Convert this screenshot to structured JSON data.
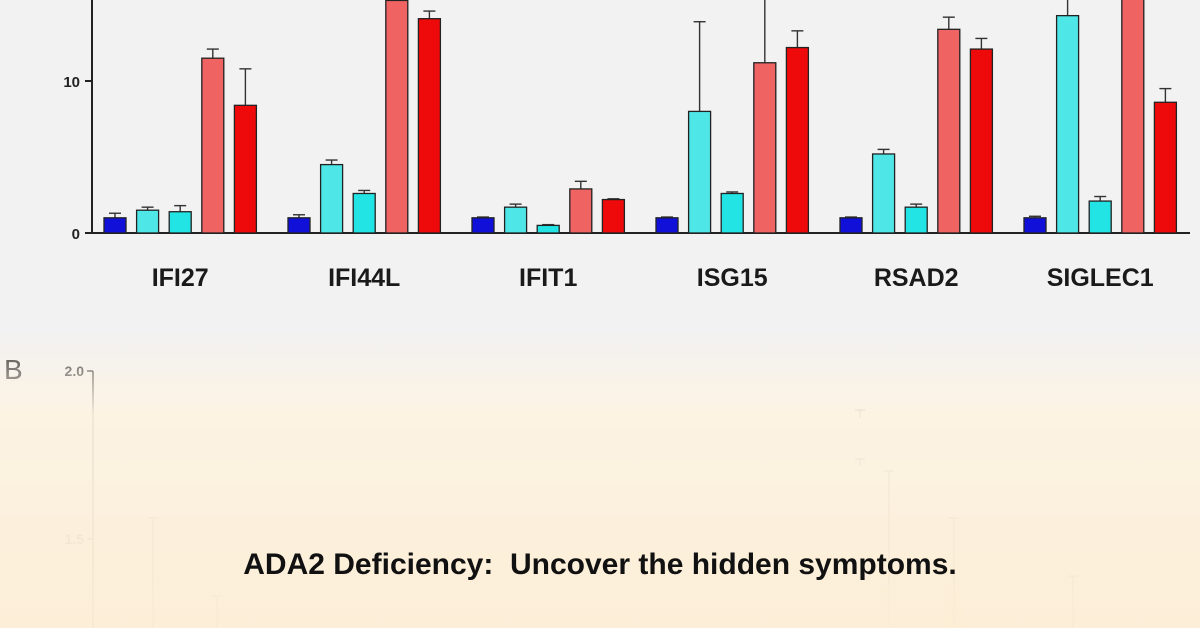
{
  "chart_data": [
    {
      "type": "bar",
      "ylim": [
        0,
        15
      ],
      "yticks": [
        0,
        10
      ],
      "grid": false,
      "categories": [
        "IFI27",
        "IFI44L",
        "IFIT1",
        "ISG15",
        "RSAD2",
        "SIGLEC1"
      ],
      "series": [
        {
          "color": "#1010d8",
          "values": [
            1.0,
            1.0,
            1.0,
            1.0,
            1.0,
            1.0
          ],
          "errors": [
            0.3,
            0.2,
            0.05,
            0.05,
            0.05,
            0.1
          ]
        },
        {
          "color": "#4ee6e6",
          "values": [
            1.5,
            4.5,
            1.7,
            8.0,
            5.2,
            14.3
          ],
          "errors": [
            0.2,
            0.3,
            0.2,
            5.9,
            0.3,
            1.8
          ]
        },
        {
          "color": "#22e4e4",
          "values": [
            1.4,
            2.6,
            0.5,
            2.6,
            1.7,
            2.1
          ],
          "errors": [
            0.4,
            0.2,
            0.05,
            0.1,
            0.2,
            0.3
          ]
        },
        {
          "color": "#ef6462",
          "values": [
            11.5,
            15.3,
            2.9,
            11.2,
            13.4,
            15.5
          ],
          "errors": [
            0.6,
            0.6,
            0.5,
            4.8,
            0.8,
            1.5
          ]
        },
        {
          "color": "#ee0a0a",
          "values": [
            8.4,
            14.1,
            2.2,
            12.2,
            12.1,
            8.6
          ],
          "errors": [
            2.4,
            0.5,
            0.05,
            1.1,
            0.7,
            0.9
          ]
        }
      ]
    },
    {
      "type": "bar",
      "panel_label": "B",
      "ylim": [
        1.0,
        2.0
      ],
      "yticks": [
        1.5,
        2.0
      ],
      "tick_labels": [
        "1.5",
        "2.0"
      ]
    }
  ],
  "panel_a": {
    "ytick_labels": [
      "0",
      "10"
    ]
  },
  "caption": "ADA2 Deficiency:  Uncover the hidden symptoms.",
  "colors": {
    "background": "#f2f2f2",
    "fade": "#fdeed6",
    "axis": "#222222"
  }
}
